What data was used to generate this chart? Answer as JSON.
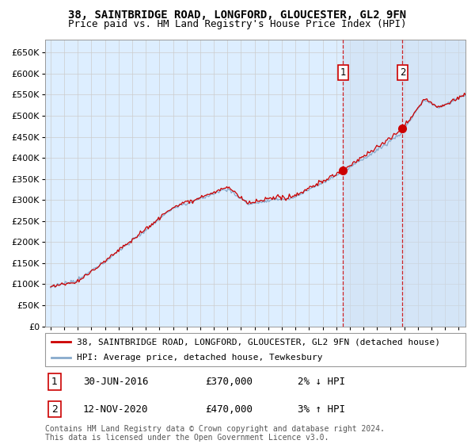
{
  "title": "38, SAINTBRIDGE ROAD, LONGFORD, GLOUCESTER, GL2 9FN",
  "subtitle": "Price paid vs. HM Land Registry's House Price Index (HPI)",
  "ylabel_ticks": [
    0,
    50000,
    100000,
    150000,
    200000,
    250000,
    300000,
    350000,
    400000,
    450000,
    500000,
    550000,
    600000,
    650000
  ],
  "ylim": [
    0,
    680000
  ],
  "xlim_start": 1994.6,
  "xlim_end": 2025.5,
  "sale1_x": 2016.5,
  "sale1_y": 370000,
  "sale2_x": 2020.87,
  "sale2_y": 470000,
  "line_color_red": "#cc0000",
  "line_color_blue": "#88aacc",
  "marker_box_color": "#cc0000",
  "dashed_line_color": "#cc0000",
  "grid_color": "#cccccc",
  "bg_color": "#ddeeff",
  "shade_color": "#ccddf0",
  "legend_label_red": "38, SAINTBRIDGE ROAD, LONGFORD, GLOUCESTER, GL2 9FN (detached house)",
  "legend_label_blue": "HPI: Average price, detached house, Tewkesbury",
  "annotation1_label": "1",
  "annotation1_date": "30-JUN-2016",
  "annotation1_price": "£370,000",
  "annotation1_hpi": "2% ↓ HPI",
  "annotation2_label": "2",
  "annotation2_date": "12-NOV-2020",
  "annotation2_price": "£470,000",
  "annotation2_hpi": "3% ↑ HPI",
  "footer": "Contains HM Land Registry data © Crown copyright and database right 2024.\nThis data is licensed under the Open Government Licence v3.0.",
  "title_fontsize": 10,
  "subtitle_fontsize": 9,
  "tick_fontsize": 8,
  "legend_fontsize": 8,
  "annot_fontsize": 9
}
